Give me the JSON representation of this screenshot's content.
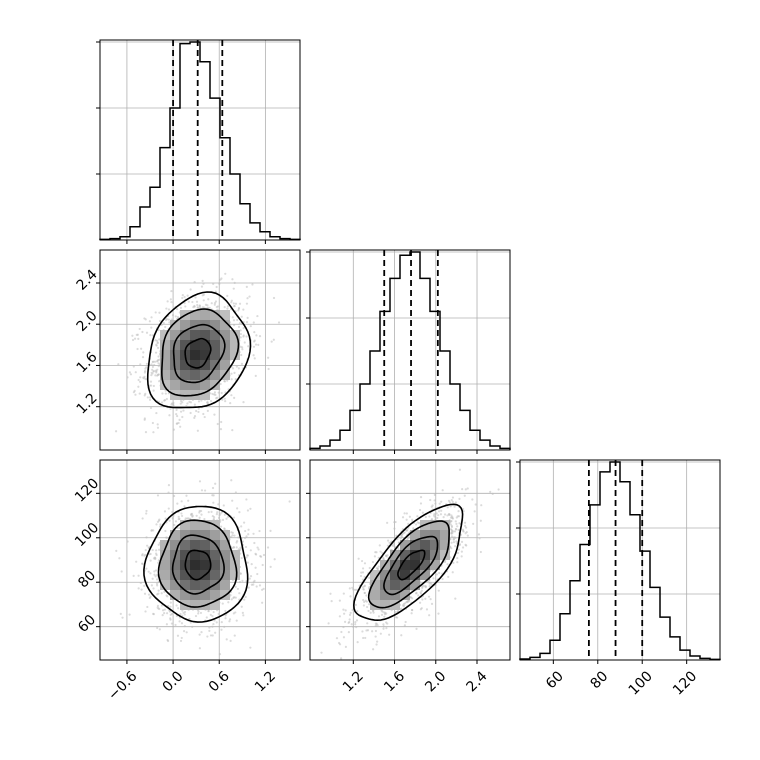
{
  "chart_data": {
    "type": "corner",
    "description_note_free": true,
    "parameters": [
      {
        "ticks": [
          -0.6,
          0.0,
          0.6,
          1.2
        ],
        "tick_labels": [
          "−0.6",
          "0.0",
          "0.6",
          "1.2"
        ],
        "range": [
          -0.95,
          1.65
        ],
        "quantiles": [
          0.0,
          0.32,
          0.64
        ],
        "hist_edges_start": -0.95,
        "hist_bin_width": 0.13,
        "hist_counts": [
          2,
          4,
          10,
          40,
          100,
          160,
          280,
          400,
          595,
          600,
          540,
          430,
          310,
          200,
          110,
          52,
          25,
          10,
          4,
          2
        ]
      },
      {
        "ticks": [
          1.2,
          1.6,
          2.0,
          2.4
        ],
        "tick_labels": [
          "1.2",
          "1.6",
          "2.0",
          "2.4"
        ],
        "range": [
          0.78,
          2.72
        ],
        "quantiles": [
          1.5,
          1.76,
          2.02
        ],
        "hist_edges_start": 0.78,
        "hist_bin_width": 0.097,
        "hist_counts": [
          5,
          12,
          30,
          60,
          120,
          200,
          300,
          420,
          520,
          590,
          600,
          520,
          420,
          300,
          200,
          120,
          60,
          30,
          12,
          5
        ]
      },
      {
        "ticks": [
          60,
          80,
          100,
          120
        ],
        "tick_labels": [
          "60",
          "80",
          "100",
          "120"
        ],
        "range": [
          45,
          135
        ],
        "quantiles": [
          76,
          88,
          100
        ],
        "hist_edges_start": 45,
        "hist_bin_width": 4.5,
        "hist_counts": [
          3,
          8,
          20,
          60,
          140,
          240,
          350,
          470,
          570,
          600,
          540,
          440,
          330,
          220,
          130,
          70,
          30,
          12,
          5,
          2
        ]
      }
    ],
    "pairs": [
      {
        "x": 0,
        "y": 1,
        "mean": [
          0.32,
          1.72
        ],
        "sd": [
          0.33,
          0.28
        ],
        "corr": 0.2
      },
      {
        "x": 0,
        "y": 2,
        "mean": [
          0.32,
          88
        ],
        "sd": [
          0.33,
          13
        ],
        "corr": 0.0
      },
      {
        "x": 1,
        "y": 2,
        "mean": [
          1.76,
          88
        ],
        "sd": [
          0.26,
          13
        ],
        "corr": 0.72
      }
    ],
    "contour_levels_sigma": [
      0.5,
      1.0,
      1.5,
      2.0
    ],
    "grid": true,
    "colors": {
      "line": "#000000",
      "points": "#bdbdbd",
      "grid": "#b0b0b0"
    }
  }
}
